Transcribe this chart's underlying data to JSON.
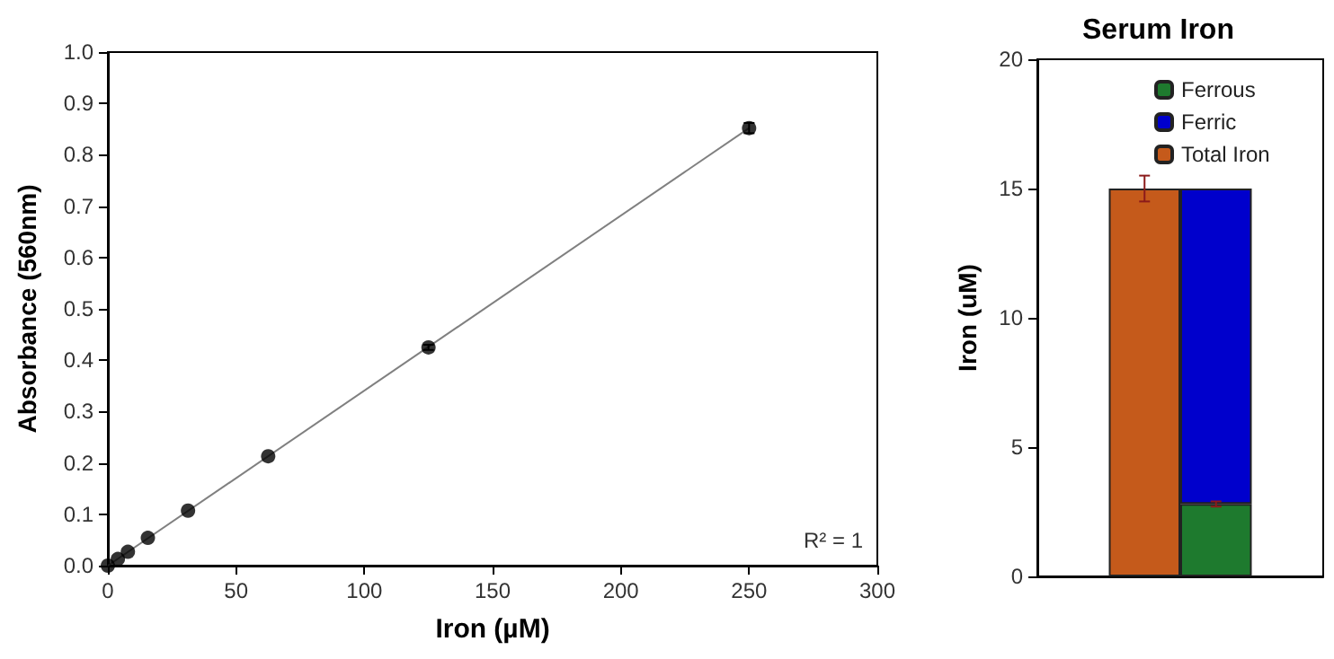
{
  "chart_data": [
    {
      "type": "scatter",
      "xlabel": "Iron (µM)",
      "ylabel": "Absorbance (560nm)",
      "xlim": [
        0,
        300
      ],
      "xticks": [
        0,
        50,
        100,
        150,
        200,
        250,
        300
      ],
      "ylim": [
        0,
        1
      ],
      "yticks": [
        {
          "value": 0,
          "label": "0.0"
        },
        0.1,
        0.2,
        0.3,
        0.4,
        0.5,
        0.6,
        0.7,
        0.8,
        0.9,
        {
          "value": 1,
          "label": "1.0"
        }
      ],
      "grid": false,
      "annotations": [
        "R² = 1"
      ],
      "series": [
        {
          "marker": "circle",
          "color": "#000000",
          "x": [
            0,
            3.9,
            7.8,
            15.6,
            31.25,
            62.5,
            125,
            250
          ],
          "values": [
            0,
            0.013,
            0.027,
            0.054,
            0.107,
            0.213,
            0.425,
            0.852
          ],
          "errors": [
            null,
            null,
            null,
            null,
            null,
            null,
            0.005,
            0.01
          ]
        },
        {
          "type": "line",
          "marker": "none",
          "color": "#808080",
          "x": [
            0,
            250
          ],
          "values": [
            0,
            0.852
          ]
        }
      ]
    },
    {
      "type": "bar",
      "title": "Serum Iron",
      "ylabel": "Iron (uM)",
      "categories": [
        null,
        null
      ],
      "ylim": [
        0,
        20
      ],
      "yticks": [
        0,
        5,
        10,
        15,
        20
      ],
      "stacked": true,
      "grid": false,
      "legend": "top",
      "tick_labels": "y",
      "series": [
        {
          "name": "Ferrous",
          "color": "#1e7a2e",
          "values": [
            null,
            2.8
          ],
          "errors": [
            null,
            0.1
          ]
        },
        {
          "name": "Ferric",
          "color": "#0000cc",
          "values": [
            null,
            12.2
          ]
        },
        {
          "name": "Total Iron",
          "color": "#c55a1b",
          "values": [
            15,
            null
          ],
          "errors": [
            0.5,
            null
          ]
        }
      ]
    }
  ]
}
